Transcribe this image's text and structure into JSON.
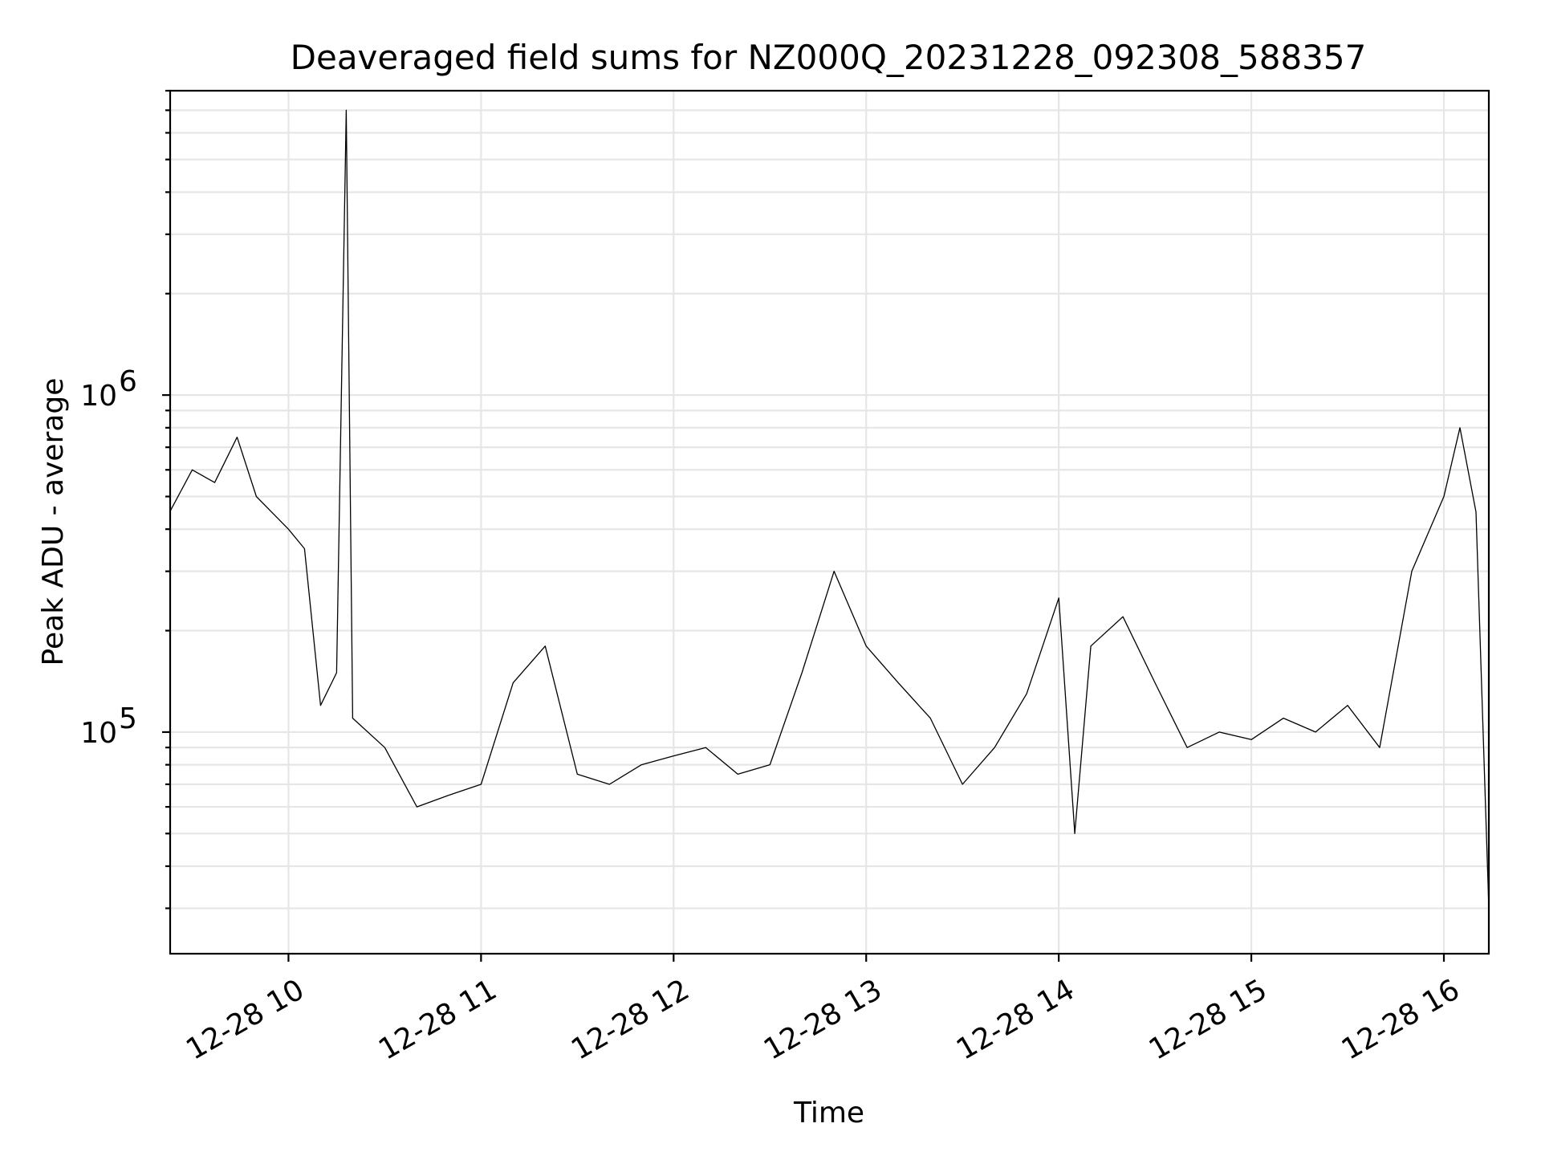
{
  "chart_data": {
    "type": "line",
    "title": "Deaveraged field sums for NZ000Q_20231228_092308_588357",
    "xlabel": "Time",
    "ylabel": "Peak ADU - average",
    "y_scale": "log",
    "ylim": [
      22000,
      8000000
    ],
    "xlim": [
      "2023-12-28 09:23:08",
      "2023-12-28 16:14:00"
    ],
    "grid": true,
    "x_ticks": [
      {
        "value": "2023-12-28 10:00",
        "label": "12-28 10"
      },
      {
        "value": "2023-12-28 11:00",
        "label": "12-28 11"
      },
      {
        "value": "2023-12-28 12:00",
        "label": "12-28 12"
      },
      {
        "value": "2023-12-28 13:00",
        "label": "12-28 13"
      },
      {
        "value": "2023-12-28 14:00",
        "label": "12-28 14"
      },
      {
        "value": "2023-12-28 15:00",
        "label": "12-28 15"
      },
      {
        "value": "2023-12-28 16:00",
        "label": "12-28 16"
      }
    ],
    "y_ticks": [
      {
        "value": 100000,
        "base": "10",
        "exp": "5"
      },
      {
        "value": 1000000,
        "base": "10",
        "exp": "6"
      }
    ],
    "series": [
      {
        "color": "#000000",
        "x": [
          "2023-12-28 09:23",
          "2023-12-28 09:30",
          "2023-12-28 09:37",
          "2023-12-28 09:44",
          "2023-12-28 09:50",
          "2023-12-28 10:00",
          "2023-12-28 10:05",
          "2023-12-28 10:10",
          "2023-12-28 10:15",
          "2023-12-28 10:18",
          "2023-12-28 10:20",
          "2023-12-28 10:30",
          "2023-12-28 10:40",
          "2023-12-28 10:50",
          "2023-12-28 11:00",
          "2023-12-28 11:10",
          "2023-12-28 11:20",
          "2023-12-28 11:30",
          "2023-12-28 11:40",
          "2023-12-28 11:50",
          "2023-12-28 12:00",
          "2023-12-28 12:10",
          "2023-12-28 12:20",
          "2023-12-28 12:30",
          "2023-12-28 12:40",
          "2023-12-28 12:50",
          "2023-12-28 13:00",
          "2023-12-28 13:10",
          "2023-12-28 13:20",
          "2023-12-28 13:30",
          "2023-12-28 13:40",
          "2023-12-28 13:50",
          "2023-12-28 14:00",
          "2023-12-28 14:05",
          "2023-12-28 14:10",
          "2023-12-28 14:20",
          "2023-12-28 14:30",
          "2023-12-28 14:40",
          "2023-12-28 14:50",
          "2023-12-28 15:00",
          "2023-12-28 15:10",
          "2023-12-28 15:20",
          "2023-12-28 15:30",
          "2023-12-28 15:40",
          "2023-12-28 15:50",
          "2023-12-28 16:00",
          "2023-12-28 16:05",
          "2023-12-28 16:10",
          "2023-12-28 16:14"
        ],
        "values": [
          450000,
          600000,
          550000,
          750000,
          500000,
          400000,
          350000,
          120000,
          150000,
          7000000,
          110000,
          90000,
          60000,
          65000,
          70000,
          140000,
          180000,
          75000,
          70000,
          80000,
          85000,
          90000,
          75000,
          80000,
          150000,
          300000,
          180000,
          140000,
          110000,
          70000,
          90000,
          130000,
          250000,
          50000,
          180000,
          220000,
          140000,
          90000,
          100000,
          95000,
          110000,
          100000,
          120000,
          90000,
          300000,
          500000,
          800000,
          450000,
          30000
        ]
      }
    ]
  }
}
